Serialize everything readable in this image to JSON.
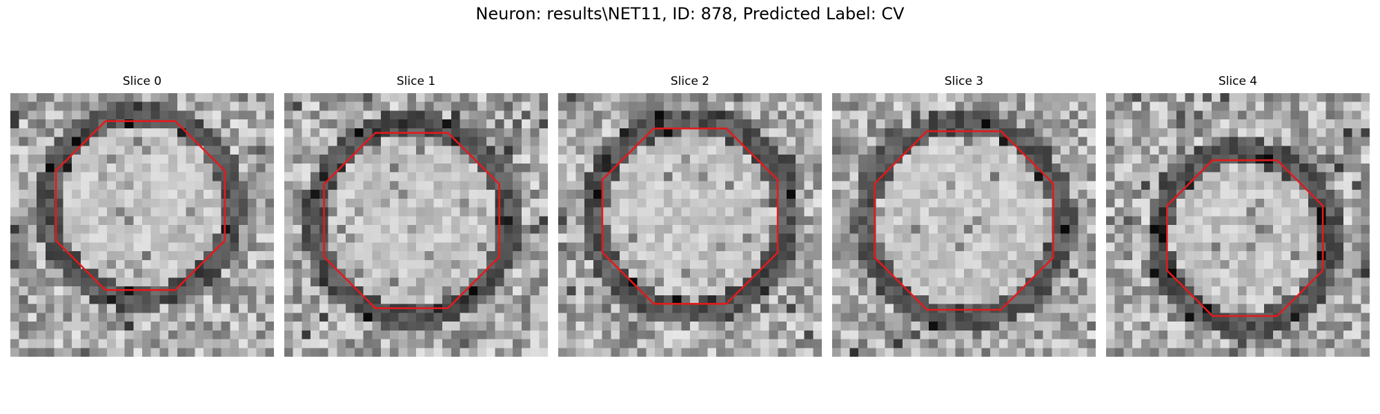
{
  "figure": {
    "title": "Neuron: results\\NET11, ID: 878, Predicted Label: CV"
  },
  "panels": [
    {
      "title": "Slice 0",
      "image": "grayscale-em-slice",
      "overlay": "red-contour"
    },
    {
      "title": "Slice 1",
      "image": "grayscale-em-slice",
      "overlay": "red-contour"
    },
    {
      "title": "Slice 2",
      "image": "grayscale-em-slice",
      "overlay": "red-contour"
    },
    {
      "title": "Slice 3",
      "image": "grayscale-em-slice",
      "overlay": "red-contour"
    },
    {
      "title": "Slice 4",
      "image": "grayscale-em-slice",
      "overlay": "red-contour"
    }
  ],
  "colors": {
    "contour": "#e31a1c",
    "background": "#ffffff",
    "text": "#000000"
  }
}
